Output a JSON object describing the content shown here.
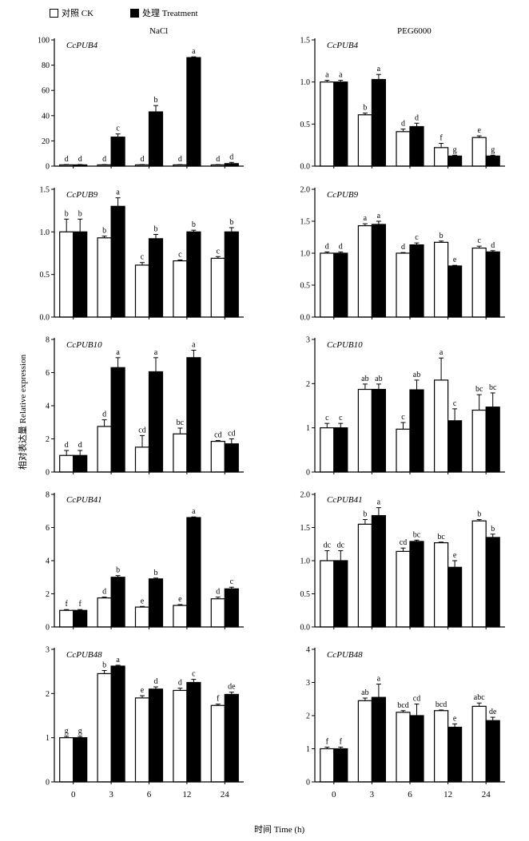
{
  "legend": [
    {
      "label": "对照 CK",
      "fill": "#ffffff"
    },
    {
      "label": "处理 Treatment",
      "fill": "#000000"
    }
  ],
  "column_titles": [
    "NaCl",
    "PEG6000"
  ],
  "ylabel": "相对表达量 Relative expression",
  "xlabel": "时间 Time (h)",
  "chart_data": [
    {
      "type": "bar",
      "gene": "CcPUB4",
      "treatment": "NaCl",
      "categories": [
        "0",
        "3",
        "6",
        "12",
        "24"
      ],
      "ylim": [
        0,
        100
      ],
      "yticks": [
        0,
        20,
        40,
        60,
        80,
        100
      ],
      "series": [
        {
          "name": "对照 CK",
          "values": [
            1,
            1,
            1,
            1,
            1
          ],
          "errors": [
            0.2,
            0.2,
            0.2,
            0.2,
            0.2
          ],
          "letters": [
            "d",
            "d",
            "d",
            "d",
            "d"
          ]
        },
        {
          "name": "处理 Treatment",
          "values": [
            1,
            23,
            43,
            86,
            2
          ],
          "errors": [
            0.3,
            2.5,
            5,
            0.6,
            1
          ],
          "letters": [
            "d",
            "c",
            "b",
            "a",
            "d"
          ]
        }
      ]
    },
    {
      "type": "bar",
      "gene": "CcPUB4",
      "treatment": "PEG6000",
      "categories": [
        "0",
        "3",
        "6",
        "12",
        "24"
      ],
      "ylim": [
        0,
        1.5
      ],
      "yticks": [
        0,
        0.5,
        1.0,
        1.5
      ],
      "series": [
        {
          "name": "对照 CK",
          "values": [
            1.0,
            0.61,
            0.41,
            0.22,
            0.34
          ],
          "errors": [
            0.02,
            0.02,
            0.03,
            0.05,
            0.02
          ],
          "letters": [
            "a",
            "b",
            "d",
            "f",
            "e"
          ]
        },
        {
          "name": "处理 Treatment",
          "values": [
            1.0,
            1.03,
            0.47,
            0.12,
            0.12
          ],
          "errors": [
            0.02,
            0.06,
            0.04,
            0.01,
            0.01
          ],
          "letters": [
            "a",
            "a",
            "d",
            "g",
            "g"
          ]
        }
      ]
    },
    {
      "type": "bar",
      "gene": "CcPUB9",
      "treatment": "NaCl",
      "categories": [
        "0",
        "3",
        "6",
        "12",
        "24"
      ],
      "ylim": [
        0,
        1.5
      ],
      "yticks": [
        0,
        0.5,
        1.0,
        1.5
      ],
      "series": [
        {
          "name": "对照 CK",
          "values": [
            1.0,
            0.93,
            0.61,
            0.66,
            0.69
          ],
          "errors": [
            0.15,
            0.02,
            0.03,
            0.01,
            0.02
          ],
          "letters": [
            "b",
            "b",
            "c",
            "c",
            "c"
          ]
        },
        {
          "name": "处理 Treatment",
          "values": [
            1.0,
            1.3,
            0.92,
            1.0,
            1.0
          ],
          "errors": [
            0.15,
            0.1,
            0.05,
            0.02,
            0.05
          ],
          "letters": [
            "b",
            "a",
            "b",
            "b",
            "b"
          ]
        }
      ]
    },
    {
      "type": "bar",
      "gene": "CcPUB9",
      "treatment": "PEG6000",
      "categories": [
        "0",
        "3",
        "6",
        "12",
        "24"
      ],
      "ylim": [
        0,
        2.0
      ],
      "yticks": [
        0,
        0.5,
        1.0,
        1.5,
        2.0
      ],
      "series": [
        {
          "name": "对照 CK",
          "values": [
            1.0,
            1.43,
            1.0,
            1.17,
            1.08
          ],
          "errors": [
            0.02,
            0.03,
            0.01,
            0.02,
            0.03
          ],
          "letters": [
            "d",
            "a",
            "d",
            "b",
            "c"
          ]
        },
        {
          "name": "处理 Treatment",
          "values": [
            1.0,
            1.45,
            1.13,
            0.8,
            1.02
          ],
          "errors": [
            0.02,
            0.05,
            0.03,
            0.01,
            0.02
          ],
          "letters": [
            "d",
            "a",
            "c",
            "e",
            "d"
          ]
        }
      ]
    },
    {
      "type": "bar",
      "gene": "CcPUB10",
      "treatment": "NaCl",
      "categories": [
        "0",
        "3",
        "6",
        "12",
        "24"
      ],
      "ylim": [
        0,
        8
      ],
      "yticks": [
        0,
        2,
        4,
        6,
        8
      ],
      "series": [
        {
          "name": "对照 CK",
          "values": [
            1.0,
            2.75,
            1.5,
            2.3,
            1.85
          ],
          "errors": [
            0.3,
            0.4,
            0.7,
            0.35,
            0.05
          ],
          "letters": [
            "d",
            "d",
            "cd",
            "bc",
            "cd"
          ]
        },
        {
          "name": "处理 Treatment",
          "values": [
            1.0,
            6.3,
            6.05,
            6.9,
            1.7
          ],
          "errors": [
            0.3,
            0.6,
            0.85,
            0.45,
            0.3
          ],
          "letters": [
            "d",
            "a",
            "a",
            "a",
            "cd"
          ]
        }
      ]
    },
    {
      "type": "bar",
      "gene": "CcPUB10",
      "treatment": "PEG6000",
      "categories": [
        "0",
        "3",
        "6",
        "12",
        "24"
      ],
      "ylim": [
        0,
        3
      ],
      "yticks": [
        0,
        1,
        2,
        3
      ],
      "series": [
        {
          "name": "对照 CK",
          "values": [
            1.0,
            1.87,
            0.97,
            2.08,
            1.4
          ],
          "errors": [
            0.1,
            0.12,
            0.15,
            0.5,
            0.35
          ],
          "letters": [
            "c",
            "ab",
            "c",
            "a",
            "bc"
          ]
        },
        {
          "name": "处理 Treatment",
          "values": [
            1.0,
            1.87,
            1.86,
            1.16,
            1.47
          ],
          "errors": [
            0.1,
            0.12,
            0.22,
            0.27,
            0.32
          ],
          "letters": [
            "c",
            "ab",
            "ab",
            "c",
            "bc"
          ]
        }
      ]
    },
    {
      "type": "bar",
      "gene": "CcPUB41",
      "treatment": "NaCl",
      "categories": [
        "0",
        "3",
        "6",
        "12",
        "24"
      ],
      "ylim": [
        0,
        8
      ],
      "yticks": [
        0,
        2,
        4,
        6,
        8
      ],
      "series": [
        {
          "name": "对照 CK",
          "values": [
            1.0,
            1.75,
            1.2,
            1.3,
            1.7
          ],
          "errors": [
            0.05,
            0.05,
            0.04,
            0.05,
            0.1
          ],
          "letters": [
            "f",
            "d",
            "e",
            "e",
            "d"
          ]
        },
        {
          "name": "处理 Treatment",
          "values": [
            1.0,
            3.0,
            2.9,
            6.6,
            2.3
          ],
          "errors": [
            0.05,
            0.1,
            0.05,
            0.04,
            0.1
          ],
          "letters": [
            "f",
            "b",
            "b",
            "a",
            "c"
          ]
        }
      ]
    },
    {
      "type": "bar",
      "gene": "CcPUB41",
      "treatment": "PEG6000",
      "categories": [
        "0",
        "3",
        "6",
        "12",
        "24"
      ],
      "ylim": [
        0,
        2.0
      ],
      "yticks": [
        0,
        0.5,
        1.0,
        1.5,
        2.0
      ],
      "series": [
        {
          "name": "对照 CK",
          "values": [
            1.0,
            1.55,
            1.14,
            1.27,
            1.6
          ],
          "errors": [
            0.15,
            0.07,
            0.05,
            0.01,
            0.02
          ],
          "letters": [
            "dc",
            "b",
            "cd",
            "bc",
            "b"
          ]
        },
        {
          "name": "处理 Treatment",
          "values": [
            1.0,
            1.68,
            1.29,
            0.9,
            1.35
          ],
          "errors": [
            0.15,
            0.12,
            0.02,
            0.1,
            0.05
          ],
          "letters": [
            "dc",
            "a",
            "bc",
            "e",
            "b"
          ]
        }
      ]
    },
    {
      "type": "bar",
      "gene": "CcPUB48",
      "treatment": "NaCl",
      "categories": [
        "0",
        "3",
        "6",
        "12",
        "24"
      ],
      "ylim": [
        0,
        3
      ],
      "yticks": [
        0,
        1,
        2,
        3
      ],
      "series": [
        {
          "name": "对照 CK",
          "values": [
            1.0,
            2.45,
            1.9,
            2.07,
            1.73
          ],
          "errors": [
            0.03,
            0.07,
            0.05,
            0.05,
            0.03
          ],
          "letters": [
            "g",
            "b",
            "e",
            "d",
            "f"
          ]
        },
        {
          "name": "处理 Treatment",
          "values": [
            1.0,
            2.62,
            2.1,
            2.25,
            1.98
          ],
          "errors": [
            0.03,
            0.02,
            0.05,
            0.07,
            0.05
          ],
          "letters": [
            "g",
            "a",
            "d",
            "c",
            "de"
          ]
        }
      ]
    },
    {
      "type": "bar",
      "gene": "CcPUB48",
      "treatment": "PEG6000",
      "categories": [
        "0",
        "3",
        "6",
        "12",
        "24"
      ],
      "ylim": [
        0,
        4
      ],
      "yticks": [
        0,
        1,
        2,
        3,
        4
      ],
      "series": [
        {
          "name": "对照 CK",
          "values": [
            1.0,
            2.45,
            2.1,
            2.15,
            2.28
          ],
          "errors": [
            0.05,
            0.08,
            0.05,
            0.02,
            0.1
          ],
          "letters": [
            "f",
            "ab",
            "bcd",
            "bcd",
            "abc"
          ]
        },
        {
          "name": "处理 Treatment",
          "values": [
            1.0,
            2.55,
            2.0,
            1.65,
            1.85
          ],
          "errors": [
            0.05,
            0.4,
            0.35,
            0.1,
            0.1
          ],
          "letters": [
            "f",
            "a",
            "cd",
            "e",
            "de"
          ]
        }
      ]
    }
  ]
}
